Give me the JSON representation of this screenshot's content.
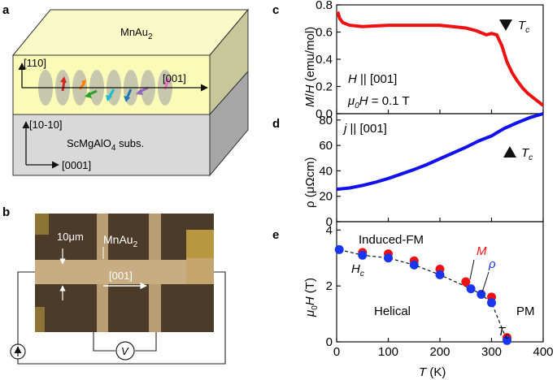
{
  "panel_a": {
    "letter": "a",
    "film_label_base": "MnAu",
    "film_label_sub": "2",
    "axis_up_label": "[110]",
    "axis_right_label": "[001]",
    "substrate_axis_up": "[10-10]",
    "substrate_axis_right": "[0001]",
    "substrate_label_1": "ScMgAlO",
    "substrate_label_sub": "4",
    "substrate_label_2": " subs.",
    "spin_colors": [
      "#d62728",
      "#ff7f0e",
      "#2ca02c",
      "#17becf",
      "#1f77b4",
      "#9467bd",
      "#e377c2",
      "#8c564b"
    ]
  },
  "panel_b": {
    "letter": "b",
    "scale_label": "10μm",
    "film_label_base": "MnAu",
    "film_label_sub": "2",
    "direction_label": "[001]",
    "voltmeter_label": "V"
  },
  "panel_c": {
    "letter": "c",
    "ylabel": "M/H (emu/mol)",
    "anno_line1_italic": "H",
    "anno_line1_rest": " || [001]",
    "anno_line2_mu": "μ",
    "anno_line2_sub": "0",
    "anno_line2_italic": "H",
    "anno_line2_rest": " = 0.1 T",
    "tc_label": "T",
    "tc_sub": "c",
    "line_color": "#ee1111"
  },
  "panel_d": {
    "letter": "d",
    "ylabel": "ρ (μΩcm)",
    "anno_italic": "j",
    "anno_rest": " || [001]",
    "tc_label": "T",
    "tc_sub": "c",
    "line_color": "#1111ee"
  },
  "panel_e": {
    "letter": "e",
    "ylabel_mu": "μ",
    "ylabel_sub": "0",
    "ylabel_rest": "H (T)",
    "xlabel": "T (K)",
    "region_top": "Induced-FM",
    "region_mid": "Helical",
    "region_right": "PM",
    "hc_label": "H",
    "hc_sub": "c",
    "tc_label": "T",
    "tc_sub": "c",
    "m_label": "M",
    "rho_label": "ρ",
    "m_color": "#ee1111",
    "rho_color": "#1a35ee"
  },
  "chart_data": [
    {
      "type": "line",
      "panel": "c",
      "xlabel": "",
      "ylabel": "M/H (emu/mol)",
      "xlim": [
        0,
        400
      ],
      "ylim": [
        0.0,
        0.8
      ],
      "yticks": [
        "0.0",
        "0.2",
        "0.4",
        "0.6",
        "0.8"
      ],
      "series": [
        {
          "x": [
            2,
            6,
            12,
            25,
            50,
            100,
            150,
            200,
            250,
            270,
            290,
            300,
            310,
            320,
            330,
            340,
            350,
            360,
            370,
            380,
            390,
            400
          ],
          "y": [
            0.75,
            0.7,
            0.67,
            0.65,
            0.64,
            0.65,
            0.65,
            0.65,
            0.63,
            0.61,
            0.58,
            0.59,
            0.58,
            0.5,
            0.38,
            0.3,
            0.24,
            0.19,
            0.15,
            0.12,
            0.09,
            0.06
          ]
        }
      ]
    },
    {
      "type": "line",
      "panel": "d",
      "xlabel": "",
      "ylabel": "ρ (μΩcm)",
      "xlim": [
        0,
        400
      ],
      "ylim": [
        0,
        85
      ],
      "yticks": [
        "0",
        "20",
        "40",
        "60",
        "80"
      ],
      "series": [
        {
          "x": [
            0,
            25,
            50,
            75,
            100,
            125,
            150,
            175,
            200,
            225,
            250,
            275,
            300,
            310,
            325,
            350,
            375,
            400
          ],
          "y": [
            25.5,
            26.5,
            28.5,
            31,
            34,
            37.5,
            41,
            45,
            49.5,
            54,
            58.5,
            63.5,
            67.5,
            70,
            73.5,
            78,
            82,
            85
          ]
        }
      ]
    },
    {
      "type": "scatter",
      "panel": "e",
      "xlabel": "T (K)",
      "ylabel": "μ0H (T)",
      "xlim": [
        0,
        400
      ],
      "ylim": [
        0,
        4.3
      ],
      "xticks": [
        "0",
        "100",
        "200",
        "300",
        "400"
      ],
      "yticks": [
        "0",
        "2",
        "4"
      ],
      "series": [
        {
          "name": "M",
          "x": [
            50,
            100,
            150,
            200,
            250,
            300,
            330
          ],
          "y": [
            3.2,
            3.15,
            2.9,
            2.6,
            2.15,
            1.6,
            0.15
          ]
        },
        {
          "name": "ρ",
          "x": [
            5,
            50,
            100,
            150,
            200,
            260,
            280,
            300,
            330
          ],
          "y": [
            3.3,
            3.1,
            3.0,
            2.75,
            2.4,
            1.9,
            1.7,
            1.4,
            0.05
          ]
        }
      ]
    }
  ]
}
